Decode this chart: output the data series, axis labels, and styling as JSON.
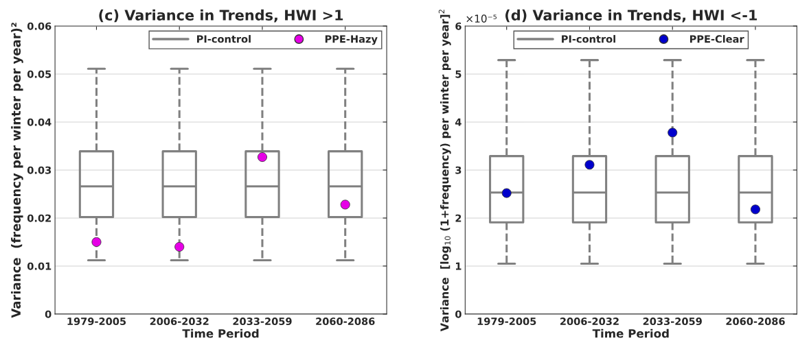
{
  "chart_data": [
    {
      "type": "box",
      "title": "(c) Variance in Trends, HWI >1",
      "xlabel": "Time Period",
      "ylabel": "Variance  (frequency per winter per year)²",
      "categories": [
        "1979-2005",
        "2006-2032",
        "2033-2059",
        "2060-2086"
      ],
      "ylim": [
        0,
        0.06
      ],
      "yticks": [
        0,
        0.01,
        0.02,
        0.03,
        0.04,
        0.05,
        0.06
      ],
      "grid": "y",
      "legend": "top right",
      "series": [
        {
          "name": "PI-control",
          "color": "#808080",
          "line_style": "dashed",
          "boxes": [
            {
              "low": 0.0112,
              "q1": 0.0202,
              "median": 0.0266,
              "q3": 0.0339,
              "high": 0.0511
            },
            {
              "low": 0.0112,
              "q1": 0.0202,
              "median": 0.0266,
              "q3": 0.0339,
              "high": 0.0511
            },
            {
              "low": 0.0112,
              "q1": 0.0202,
              "median": 0.0266,
              "q3": 0.0339,
              "high": 0.0511
            },
            {
              "low": 0.0112,
              "q1": 0.0202,
              "median": 0.0266,
              "q3": 0.0339,
              "high": 0.0511
            }
          ]
        },
        {
          "name": "PPE-Hazy",
          "type": "scatter",
          "color": "#e600e6",
          "marker": "circle",
          "x": [
            "1979-2005",
            "2006-2032",
            "2033-2059",
            "2060-2086"
          ],
          "values": [
            0.015,
            0.014,
            0.0327,
            0.0228
          ]
        }
      ]
    },
    {
      "type": "box",
      "title": "(d) Variance in Trends, HWI <-1",
      "xlabel": "Time Period",
      "ylabel": "Variance  [log$_{10}$ (1+frequency) per winter per year]$^{2}$",
      "annotations": [
        "×10⁻⁵"
      ],
      "categories": [
        "1979-2005",
        "2006-2032",
        "2033-2059",
        "2060-2086"
      ],
      "ylim": [
        0,
        6
      ],
      "yticks": [
        0,
        1,
        2,
        3,
        4,
        5,
        6
      ],
      "grid": "y",
      "legend": "top",
      "series": [
        {
          "name": "PI-control",
          "color": "#808080",
          "line_style": "dashed",
          "boxes": [
            {
              "low": 1.05,
              "q1": 1.91,
              "median": 2.53,
              "q3": 3.29,
              "high": 5.29
            },
            {
              "low": 1.05,
              "q1": 1.91,
              "median": 2.53,
              "q3": 3.29,
              "high": 5.29
            },
            {
              "low": 1.05,
              "q1": 1.91,
              "median": 2.53,
              "q3": 3.29,
              "high": 5.29
            },
            {
              "low": 1.05,
              "q1": 1.91,
              "median": 2.53,
              "q3": 3.29,
              "high": 5.29
            }
          ]
        },
        {
          "name": "PPE-Clear",
          "type": "scatter",
          "color": "#0000cc",
          "marker": "circle",
          "x": [
            "1979-2005",
            "2006-2032",
            "2033-2059",
            "2060-2086"
          ],
          "values": [
            2.52,
            3.11,
            3.78,
            2.18
          ]
        }
      ]
    }
  ]
}
